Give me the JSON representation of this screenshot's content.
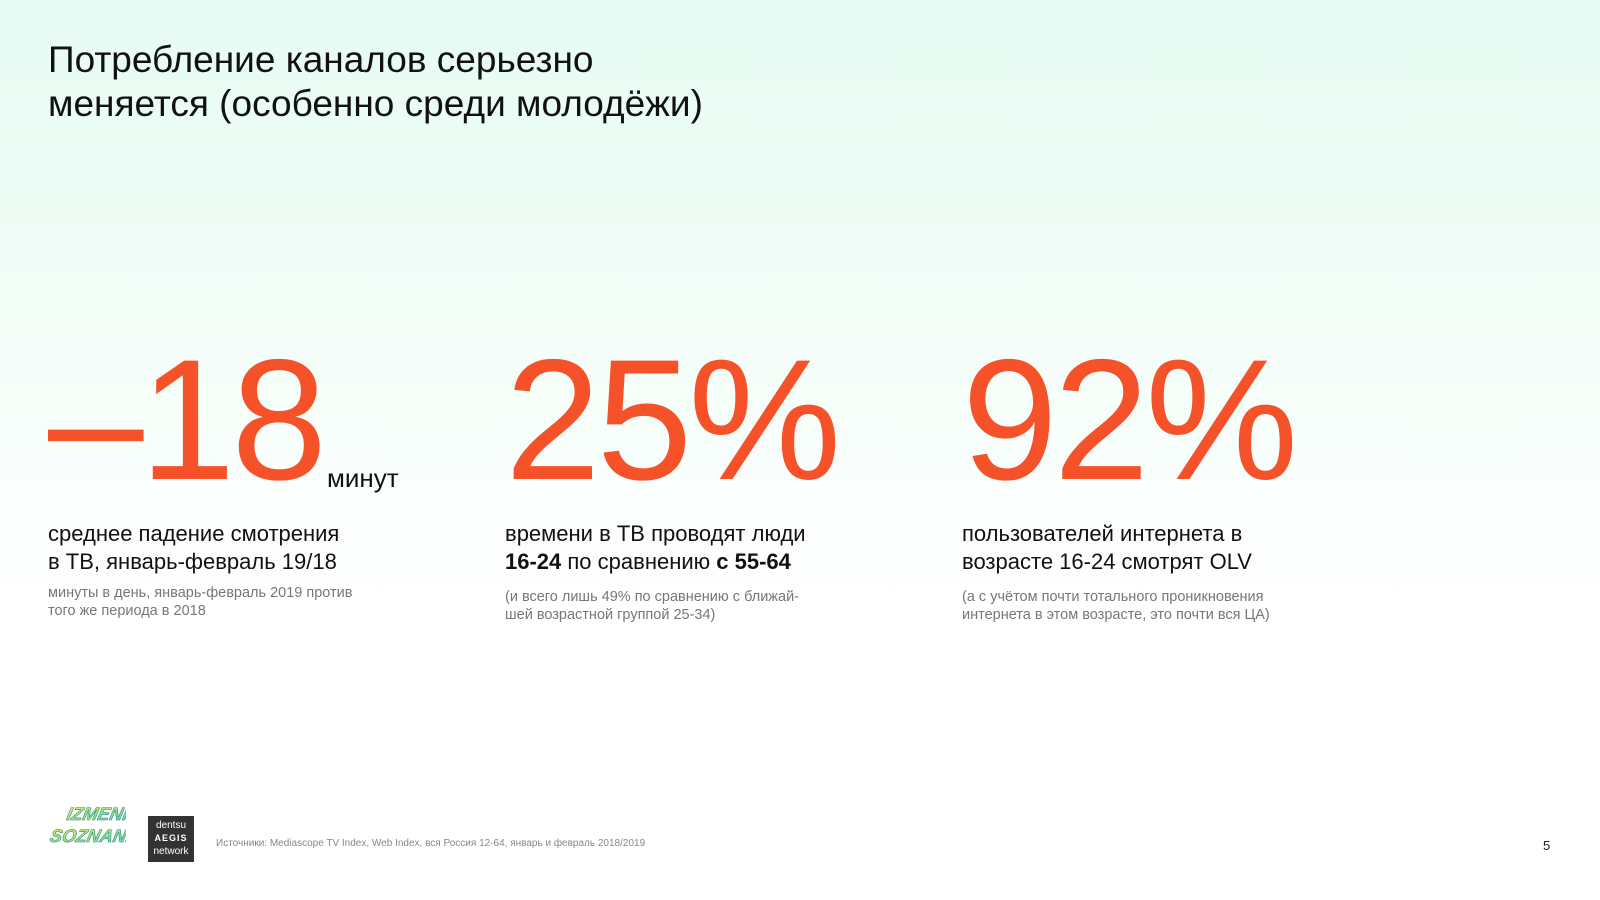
{
  "title": "Потребление каналов серьезно\nменяется (особенно среди молодёжи)",
  "accent_color": "#f5522a",
  "stats": [
    {
      "value": "–18",
      "unit": "минут",
      "desc_line1": "среднее падение смотрения",
      "desc_line2": "в ТВ, январь-февраль 19/18",
      "note": "минуты в день, январь-февраль 2019 против того же периода в 2018"
    },
    {
      "value": "25%",
      "desc_line1": "времени в ТВ проводят люди",
      "desc_bold1": "16-24",
      "desc_mid": " по сравнению ",
      "desc_bold2": "с 55-64",
      "note": "(и всего лишь 49% по сравнению с ближай-шей возрастной группой 25-34)"
    },
    {
      "value": "92%",
      "desc_line1": "пользователей интернета в",
      "desc_line2": "возрасте 16-24 смотрят OLV",
      "note": "(а с учётом почти тотального проникновения интернета в этом возрасте, это почти вся ЦА)"
    }
  ],
  "footer": {
    "logo1": "IZMENI SOZNANIE",
    "logo2": [
      "dentsu",
      "AEGIS",
      "network"
    ],
    "source": "Источники: Mediascope TV Index, Web Index, вся Россия 12-64, январь и февраль 2018/2019",
    "page_number": "5"
  }
}
